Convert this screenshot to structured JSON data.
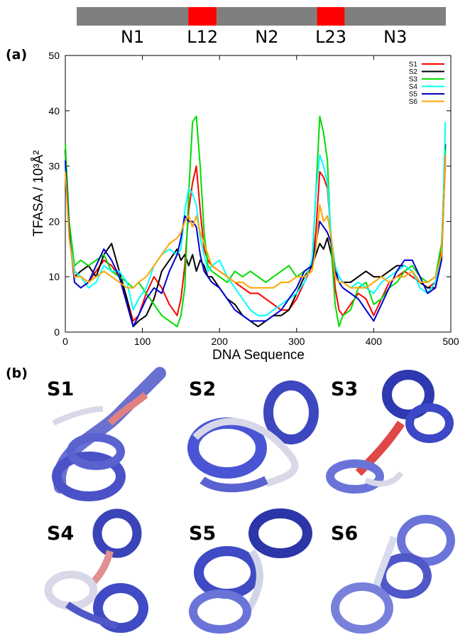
{
  "figure": {
    "panel_a_label": "(a)",
    "panel_b_label": "(b)"
  },
  "segments": [
    {
      "label": "N1",
      "from": 1,
      "to": 150,
      "color": "#7f7f7f"
    },
    {
      "label": "L12",
      "from": 150,
      "to": 188,
      "color": "#ff0000"
    },
    {
      "label": "N2",
      "from": 188,
      "to": 322,
      "color": "#7f7f7f"
    },
    {
      "label": "L23",
      "from": 322,
      "to": 359,
      "color": "#ff0000"
    },
    {
      "label": "N3",
      "from": 359,
      "to": 494,
      "color": "#7f7f7f"
    }
  ],
  "snapshots": [
    {
      "label": "S1",
      "tint": "#5a62d0",
      "accent": "#e07070"
    },
    {
      "label": "S2",
      "tint": "#4a55d6",
      "accent": "#d8d8e8"
    },
    {
      "label": "S3",
      "tint": "#3c48c6",
      "accent": "#e04848"
    },
    {
      "label": "S4",
      "tint": "#5058c8",
      "accent": "#e09090"
    },
    {
      "label": "S5",
      "tint": "#3f4ac4",
      "accent": "#d0d4e8"
    },
    {
      "label": "S6",
      "tint": "#6a74d8",
      "accent": "#d8dcec"
    }
  ],
  "chart_data": {
    "type": "line",
    "xlabel": "DNA Sequence",
    "ylabel": "TFASA / 10³Å²",
    "xlim": [
      0,
      500
    ],
    "ylim": [
      0,
      50
    ],
    "xticks": [
      0,
      100,
      200,
      300,
      400,
      500
    ],
    "yticks": [
      0,
      10,
      20,
      30,
      40,
      50
    ],
    "grid": false,
    "legend_position": "top-right",
    "series": [
      {
        "name": "S1",
        "color": "#ff0000",
        "x": [
          0,
          5,
          12,
          20,
          30,
          40,
          50,
          60,
          70,
          80,
          88,
          95,
          105,
          115,
          125,
          135,
          145,
          150,
          155,
          160,
          165,
          170,
          175,
          180,
          185,
          190,
          200,
          210,
          220,
          230,
          240,
          250,
          260,
          270,
          280,
          290,
          300,
          310,
          320,
          325,
          330,
          335,
          340,
          345,
          350,
          355,
          360,
          370,
          380,
          390,
          400,
          410,
          420,
          430,
          440,
          450,
          460,
          470,
          480,
          488,
          493
        ],
        "y": [
          33,
          20,
          11,
          10,
          9,
          11,
          13,
          12,
          10,
          6,
          2,
          3,
          7,
          10,
          8,
          5,
          3,
          6,
          12,
          22,
          27,
          30,
          22,
          15,
          13,
          12,
          11,
          10,
          9,
          8,
          7,
          7,
          6,
          5,
          4,
          4,
          6,
          9,
          12,
          18,
          29,
          28,
          26,
          17,
          8,
          4,
          3,
          5,
          7,
          6,
          3,
          6,
          9,
          10,
          11,
          10,
          9,
          8,
          9,
          15,
          31
        ]
      },
      {
        "name": "S2",
        "color": "#000000",
        "x": [
          0,
          5,
          12,
          20,
          30,
          40,
          50,
          60,
          70,
          80,
          88,
          95,
          105,
          115,
          125,
          135,
          145,
          150,
          155,
          160,
          165,
          170,
          175,
          180,
          185,
          190,
          200,
          210,
          220,
          230,
          240,
          250,
          260,
          270,
          280,
          290,
          300,
          310,
          320,
          325,
          330,
          335,
          340,
          345,
          350,
          355,
          360,
          370,
          380,
          390,
          400,
          410,
          420,
          430,
          440,
          450,
          460,
          470,
          480,
          488,
          493
        ],
        "y": [
          33,
          19,
          10,
          11,
          12,
          10,
          14,
          16,
          11,
          6,
          1,
          2,
          3,
          6,
          11,
          13,
          15,
          13,
          14,
          12,
          14,
          11,
          13,
          12,
          10,
          10,
          8,
          6,
          5,
          3,
          2,
          1,
          2,
          3,
          3,
          4,
          7,
          10,
          12,
          14,
          16,
          15,
          17,
          14,
          11,
          10,
          9,
          9,
          10,
          11,
          10,
          10,
          11,
          12,
          12,
          11,
          9,
          8,
          8,
          14,
          34
        ]
      },
      {
        "name": "S3",
        "color": "#00dd00",
        "x": [
          0,
          5,
          12,
          20,
          30,
          40,
          50,
          60,
          70,
          80,
          88,
          95,
          105,
          115,
          125,
          135,
          145,
          150,
          155,
          160,
          165,
          170,
          175,
          180,
          185,
          190,
          200,
          210,
          220,
          230,
          240,
          250,
          260,
          270,
          280,
          290,
          300,
          310,
          320,
          325,
          330,
          335,
          340,
          345,
          350,
          355,
          360,
          370,
          380,
          390,
          400,
          410,
          420,
          430,
          440,
          450,
          460,
          470,
          480,
          488,
          493
        ],
        "y": [
          34,
          20,
          12,
          13,
          12,
          13,
          14,
          11,
          10,
          9,
          8,
          9,
          7,
          5,
          3,
          2,
          1,
          3,
          8,
          25,
          38,
          39,
          30,
          18,
          12,
          11,
          10,
          9,
          11,
          10,
          11,
          10,
          9,
          10,
          11,
          12,
          10,
          11,
          12,
          25,
          39,
          36,
          31,
          15,
          5,
          1,
          3,
          4,
          8,
          9,
          5,
          6,
          8,
          9,
          11,
          12,
          10,
          9,
          10,
          16,
          33
        ]
      },
      {
        "name": "S4",
        "color": "#00ffff",
        "x": [
          0,
          5,
          12,
          20,
          30,
          40,
          50,
          60,
          70,
          80,
          88,
          95,
          105,
          115,
          125,
          135,
          145,
          150,
          155,
          160,
          165,
          170,
          175,
          180,
          185,
          190,
          200,
          210,
          220,
          230,
          240,
          250,
          260,
          270,
          280,
          290,
          300,
          310,
          320,
          325,
          330,
          335,
          340,
          345,
          350,
          355,
          360,
          370,
          380,
          390,
          400,
          410,
          420,
          430,
          440,
          450,
          460,
          470,
          480,
          488,
          493
        ],
        "y": [
          30,
          18,
          11,
          10,
          8,
          9,
          12,
          11,
          11,
          9,
          4,
          6,
          8,
          12,
          14,
          15,
          14,
          15,
          22,
          26,
          25,
          23,
          17,
          14,
          11,
          12,
          13,
          10,
          8,
          6,
          4,
          3,
          3,
          4,
          5,
          6,
          7,
          9,
          13,
          25,
          32,
          30,
          27,
          17,
          12,
          10,
          9,
          8,
          9,
          8,
          7,
          9,
          10,
          11,
          12,
          11,
          8,
          7,
          9,
          14,
          38
        ]
      },
      {
        "name": "S5",
        "color": "#0000cc",
        "x": [
          0,
          5,
          12,
          20,
          30,
          40,
          50,
          60,
          70,
          80,
          88,
          95,
          105,
          115,
          125,
          135,
          145,
          150,
          155,
          160,
          165,
          170,
          175,
          180,
          185,
          190,
          200,
          210,
          220,
          230,
          240,
          250,
          260,
          270,
          280,
          290,
          300,
          310,
          320,
          325,
          330,
          335,
          340,
          345,
          350,
          355,
          360,
          370,
          380,
          390,
          400,
          410,
          420,
          430,
          440,
          450,
          460,
          470,
          480,
          488,
          493
        ],
        "y": [
          31,
          18,
          9,
          8,
          9,
          12,
          15,
          13,
          10,
          5,
          1,
          3,
          6,
          8,
          7,
          11,
          14,
          17,
          21,
          20,
          20,
          19,
          14,
          11,
          10,
          9,
          8,
          6,
          4,
          3,
          2,
          2,
          2,
          3,
          4,
          6,
          8,
          11,
          12,
          16,
          20,
          19,
          18,
          16,
          11,
          9,
          8,
          7,
          6,
          4,
          2,
          5,
          8,
          11,
          13,
          13,
          10,
          7,
          8,
          13,
          32
        ]
      },
      {
        "name": "S6",
        "color": "#ffa500",
        "x": [
          0,
          5,
          12,
          20,
          30,
          40,
          50,
          60,
          70,
          80,
          88,
          95,
          105,
          115,
          125,
          135,
          145,
          150,
          155,
          160,
          165,
          170,
          175,
          180,
          185,
          190,
          200,
          210,
          220,
          230,
          240,
          250,
          260,
          270,
          280,
          290,
          300,
          310,
          320,
          325,
          330,
          335,
          340,
          345,
          350,
          355,
          360,
          370,
          380,
          390,
          400,
          410,
          420,
          430,
          440,
          450,
          460,
          470,
          480,
          488,
          493
        ],
        "y": [
          29,
          17,
          10,
          10,
          9,
          10,
          11,
          10,
          9,
          8,
          8,
          9,
          10,
          12,
          14,
          16,
          17,
          18,
          20,
          21,
          19,
          21,
          18,
          16,
          14,
          12,
          11,
          10,
          9,
          9,
          8,
          8,
          8,
          8,
          9,
          9,
          10,
          10,
          11,
          15,
          23,
          20,
          21,
          17,
          10,
          9,
          9,
          8,
          8,
          8,
          9,
          10,
          9,
          10,
          10,
          11,
          9,
          9,
          10,
          14,
          32
        ]
      }
    ]
  }
}
